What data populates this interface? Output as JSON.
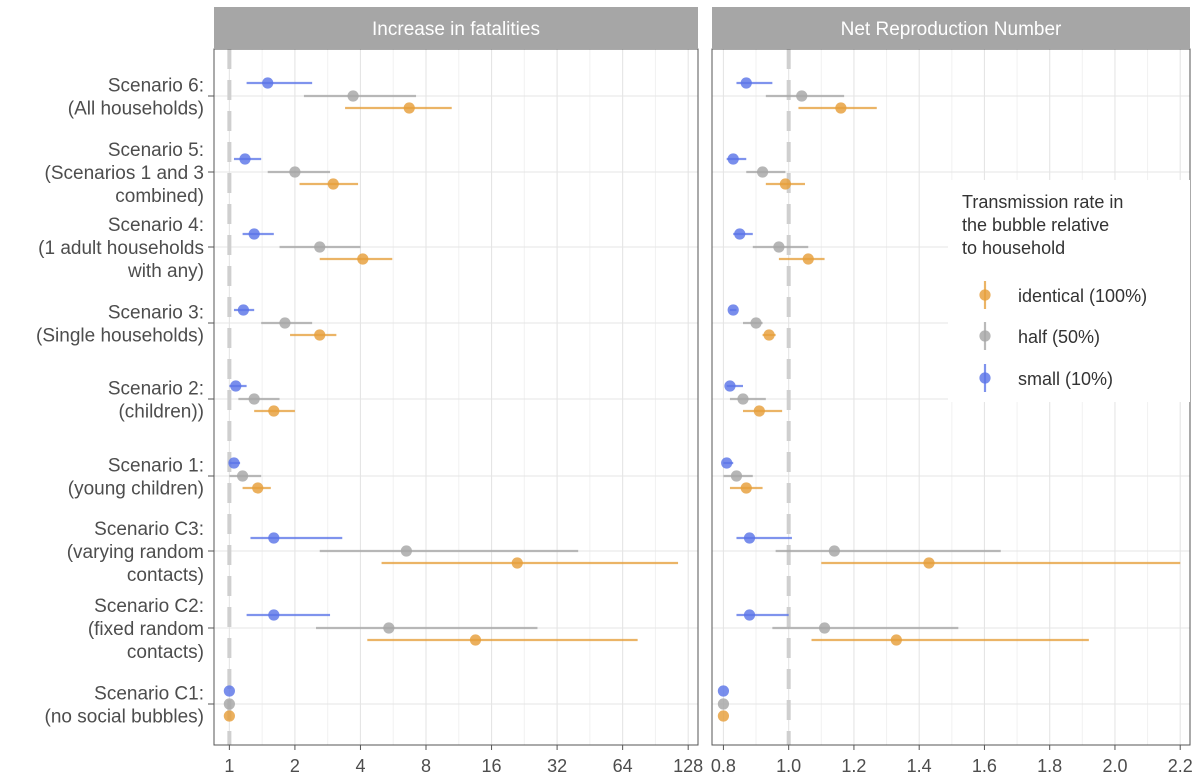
{
  "chart_data": {
    "type": "scatter",
    "subtype": "dot-and-whisker forest plot, faceted",
    "scenario_labels": [
      [
        "Scenario 6:",
        "(All households)"
      ],
      [
        "Scenario 5:",
        "(Scenarios 1 and 3",
        "combined)"
      ],
      [
        "Scenario 4:",
        "(1 adult households",
        "with any)"
      ],
      [
        "Scenario 3:",
        "(Single households)"
      ],
      [
        "Scenario 2:",
        "(children))"
      ],
      [
        "Scenario 1:",
        "(young children)"
      ],
      [
        "Scenario C3:",
        "(varying random",
        "contacts)"
      ],
      [
        "Scenario C2:",
        "(fixed random",
        "contacts)"
      ],
      [
        "Scenario C1:",
        "(no social bubbles)"
      ]
    ],
    "legend": {
      "title": [
        "Transmission rate in",
        "the bubble relative",
        "to household"
      ],
      "position": "right",
      "entries": [
        {
          "label": "identical (100%)",
          "color": "#E69F3B"
        },
        {
          "label": "half (50%)",
          "color": "#A6A6A6"
        },
        {
          "label": "small (10%)",
          "color": "#5B75E8"
        }
      ]
    },
    "panels": [
      {
        "title": "Increase in fatalities",
        "scale": "log2",
        "xlim": [
          0.85,
          142
        ],
        "ticks": [
          1,
          2,
          4,
          8,
          16,
          32,
          64,
          128
        ],
        "tick_labels": [
          "1",
          "2",
          "4",
          "8",
          "16",
          "32",
          "64",
          "128"
        ],
        "reference_line": 1,
        "series": [
          {
            "name": "identical (100%)",
            "points": [
              {
                "scenario": "Scenario 6",
                "est": 6.7,
                "lo": 3.4,
                "hi": 10.5
              },
              {
                "scenario": "Scenario 5",
                "est": 3.0,
                "lo": 2.1,
                "hi": 3.9
              },
              {
                "scenario": "Scenario 4",
                "est": 4.1,
                "lo": 2.6,
                "hi": 5.6
              },
              {
                "scenario": "Scenario 3",
                "est": 2.6,
                "lo": 1.9,
                "hi": 3.1
              },
              {
                "scenario": "Scenario 2",
                "est": 1.6,
                "lo": 1.3,
                "hi": 2.0
              },
              {
                "scenario": "Scenario 1",
                "est": 1.35,
                "lo": 1.15,
                "hi": 1.55
              },
              {
                "scenario": "Scenario C3",
                "est": 21,
                "lo": 5.0,
                "hi": 115
              },
              {
                "scenario": "Scenario C2",
                "est": 13.5,
                "lo": 4.3,
                "hi": 75
              },
              {
                "scenario": "Scenario C1",
                "est": 1.0,
                "lo": 1.0,
                "hi": 1.0
              }
            ]
          },
          {
            "name": "half (50%)",
            "points": [
              {
                "scenario": "Scenario 6",
                "est": 3.7,
                "lo": 2.2,
                "hi": 7.2
              },
              {
                "scenario": "Scenario 5",
                "est": 2.0,
                "lo": 1.5,
                "hi": 2.9
              },
              {
                "scenario": "Scenario 4",
                "est": 2.6,
                "lo": 1.7,
                "hi": 4.0
              },
              {
                "scenario": "Scenario 3",
                "est": 1.8,
                "lo": 1.4,
                "hi": 2.4
              },
              {
                "scenario": "Scenario 2",
                "est": 1.3,
                "lo": 1.1,
                "hi": 1.7
              },
              {
                "scenario": "Scenario 1",
                "est": 1.15,
                "lo": 1.0,
                "hi": 1.4
              },
              {
                "scenario": "Scenario C3",
                "est": 6.5,
                "lo": 2.6,
                "hi": 40
              },
              {
                "scenario": "Scenario C2",
                "est": 5.4,
                "lo": 2.5,
                "hi": 26
              },
              {
                "scenario": "Scenario C1",
                "est": 1.0,
                "lo": 1.0,
                "hi": 1.0
              }
            ]
          },
          {
            "name": "small (10%)",
            "points": [
              {
                "scenario": "Scenario 6",
                "est": 1.5,
                "lo": 1.2,
                "hi": 2.4
              },
              {
                "scenario": "Scenario 5",
                "est": 1.18,
                "lo": 1.05,
                "hi": 1.4
              },
              {
                "scenario": "Scenario 4",
                "est": 1.3,
                "lo": 1.15,
                "hi": 1.6
              },
              {
                "scenario": "Scenario 3",
                "est": 1.16,
                "lo": 1.05,
                "hi": 1.3
              },
              {
                "scenario": "Scenario 2",
                "est": 1.07,
                "lo": 1.0,
                "hi": 1.2
              },
              {
                "scenario": "Scenario 1",
                "est": 1.05,
                "lo": 1.0,
                "hi": 1.12
              },
              {
                "scenario": "Scenario C3",
                "est": 1.6,
                "lo": 1.25,
                "hi": 3.3
              },
              {
                "scenario": "Scenario C2",
                "est": 1.6,
                "lo": 1.2,
                "hi": 2.9
              },
              {
                "scenario": "Scenario C1",
                "est": 1.0,
                "lo": 1.0,
                "hi": 1.0
              }
            ]
          }
        ]
      },
      {
        "title": "Net Reproduction Number",
        "scale": "linear",
        "xlim": [
          0.765,
          2.23
        ],
        "ticks": [
          0.8,
          1.0,
          1.2,
          1.4,
          1.6,
          1.8,
          2.0,
          2.2
        ],
        "tick_labels": [
          "0.8",
          "1.0",
          "1.2",
          "1.4",
          "1.6",
          "1.8",
          "2.0",
          "2.2"
        ],
        "reference_line": 1.0,
        "series": [
          {
            "name": "identical (100%)",
            "points": [
              {
                "scenario": "Scenario 6",
                "est": 1.16,
                "lo": 1.03,
                "hi": 1.27
              },
              {
                "scenario": "Scenario 5",
                "est": 0.99,
                "lo": 0.93,
                "hi": 1.05
              },
              {
                "scenario": "Scenario 4",
                "est": 1.06,
                "lo": 0.97,
                "hi": 1.11
              },
              {
                "scenario": "Scenario 3",
                "est": 0.94,
                "lo": 0.92,
                "hi": 0.96
              },
              {
                "scenario": "Scenario 2",
                "est": 0.91,
                "lo": 0.86,
                "hi": 0.98
              },
              {
                "scenario": "Scenario 1",
                "est": 0.87,
                "lo": 0.82,
                "hi": 0.92
              },
              {
                "scenario": "Scenario C3",
                "est": 1.43,
                "lo": 1.1,
                "hi": 2.2
              },
              {
                "scenario": "Scenario C2",
                "est": 1.33,
                "lo": 1.07,
                "hi": 1.92
              },
              {
                "scenario": "Scenario C1",
                "est": 0.8,
                "lo": 0.8,
                "hi": 0.8
              }
            ]
          },
          {
            "name": "half (50%)",
            "points": [
              {
                "scenario": "Scenario 6",
                "est": 1.04,
                "lo": 0.93,
                "hi": 1.17
              },
              {
                "scenario": "Scenario 5",
                "est": 0.92,
                "lo": 0.87,
                "hi": 0.99
              },
              {
                "scenario": "Scenario 4",
                "est": 0.97,
                "lo": 0.89,
                "hi": 1.06
              },
              {
                "scenario": "Scenario 3",
                "est": 0.9,
                "lo": 0.86,
                "hi": 0.92
              },
              {
                "scenario": "Scenario 2",
                "est": 0.86,
                "lo": 0.82,
                "hi": 0.93
              },
              {
                "scenario": "Scenario 1",
                "est": 0.84,
                "lo": 0.8,
                "hi": 0.89
              },
              {
                "scenario": "Scenario C3",
                "est": 1.14,
                "lo": 0.96,
                "hi": 1.65
              },
              {
                "scenario": "Scenario C2",
                "est": 1.11,
                "lo": 0.95,
                "hi": 1.52
              },
              {
                "scenario": "Scenario C1",
                "est": 0.8,
                "lo": 0.8,
                "hi": 0.8
              }
            ]
          },
          {
            "name": "small (10%)",
            "points": [
              {
                "scenario": "Scenario 6",
                "est": 0.87,
                "lo": 0.84,
                "hi": 0.95
              },
              {
                "scenario": "Scenario 5",
                "est": 0.83,
                "lo": 0.81,
                "hi": 0.87
              },
              {
                "scenario": "Scenario 4",
                "est": 0.85,
                "lo": 0.83,
                "hi": 0.89
              },
              {
                "scenario": "Scenario 3",
                "est": 0.83,
                "lo": 0.82,
                "hi": 0.84
              },
              {
                "scenario": "Scenario 2",
                "est": 0.82,
                "lo": 0.81,
                "hi": 0.86
              },
              {
                "scenario": "Scenario 1",
                "est": 0.81,
                "lo": 0.8,
                "hi": 0.83
              },
              {
                "scenario": "Scenario C3",
                "est": 0.88,
                "lo": 0.84,
                "hi": 1.01
              },
              {
                "scenario": "Scenario C2",
                "est": 0.88,
                "lo": 0.84,
                "hi": 1.0
              },
              {
                "scenario": "Scenario C1",
                "est": 0.8,
                "lo": 0.8,
                "hi": 0.8
              }
            ]
          }
        ]
      }
    ]
  }
}
